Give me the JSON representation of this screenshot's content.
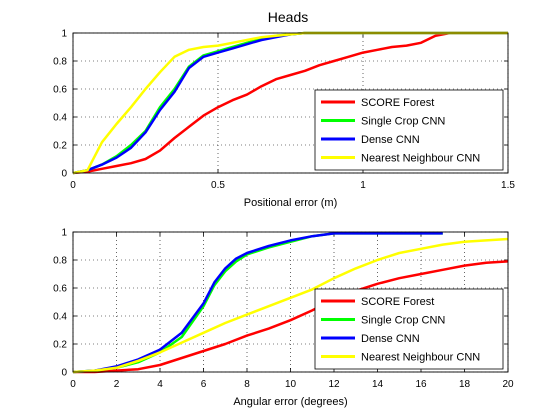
{
  "figure": {
    "title": "Heads",
    "legend_placement": "bottom-right"
  },
  "chart_data": [
    {
      "type": "line",
      "title": "Heads",
      "xlabel": "Positional error (m)",
      "ylabel": "",
      "xlim": [
        0,
        1.5
      ],
      "ylim": [
        0,
        1
      ],
      "xticks": [
        "0",
        "0.5",
        "1",
        "1.5"
      ],
      "yticks": [
        "0",
        "0.2",
        "0.4",
        "0.6",
        "0.8",
        "1"
      ],
      "grid": true,
      "legend": "bottom-right",
      "series": [
        {
          "name": "SCORE Forest",
          "color": "#ff0000",
          "x": [
            0,
            0.05,
            0.1,
            0.15,
            0.2,
            0.25,
            0.3,
            0.35,
            0.4,
            0.45,
            0.5,
            0.55,
            0.6,
            0.65,
            0.7,
            0.75,
            0.8,
            0.85,
            0.9,
            0.95,
            1.0,
            1.05,
            1.1,
            1.15,
            1.2,
            1.25,
            1.3,
            1.5
          ],
          "y": [
            0,
            0.01,
            0.03,
            0.05,
            0.07,
            0.1,
            0.16,
            0.25,
            0.33,
            0.41,
            0.47,
            0.52,
            0.56,
            0.62,
            0.67,
            0.7,
            0.73,
            0.77,
            0.8,
            0.83,
            0.86,
            0.88,
            0.9,
            0.91,
            0.93,
            0.98,
            1.0,
            1.0
          ]
        },
        {
          "name": "Single Crop CNN",
          "color": "#00ff00",
          "x": [
            0,
            0.05,
            0.1,
            0.15,
            0.2,
            0.25,
            0.3,
            0.35,
            0.4,
            0.45,
            0.5,
            0.55,
            0.6,
            0.65,
            0.7,
            0.75,
            0.8,
            1.5
          ],
          "y": [
            0,
            0.02,
            0.06,
            0.12,
            0.2,
            0.3,
            0.47,
            0.6,
            0.76,
            0.84,
            0.87,
            0.9,
            0.93,
            0.96,
            0.98,
            0.99,
            1.0,
            1.0
          ]
        },
        {
          "name": "Dense CNN",
          "color": "#0000ff",
          "x": [
            0,
            0.05,
            0.1,
            0.15,
            0.2,
            0.25,
            0.3,
            0.35,
            0.4,
            0.45,
            0.5,
            0.55,
            0.6,
            0.65,
            0.7,
            0.75,
            0.8,
            1.5
          ],
          "y": [
            0,
            0.02,
            0.06,
            0.11,
            0.18,
            0.29,
            0.45,
            0.58,
            0.75,
            0.83,
            0.86,
            0.89,
            0.92,
            0.95,
            0.97,
            0.99,
            1.0,
            1.0
          ]
        },
        {
          "name": "Nearest Neighbour CNN",
          "color": "#ffff00",
          "x": [
            0,
            0.05,
            0.1,
            0.15,
            0.2,
            0.25,
            0.3,
            0.35,
            0.4,
            0.45,
            0.5,
            0.55,
            0.6,
            0.65,
            0.7,
            0.75,
            0.8,
            1.5
          ],
          "y": [
            0,
            0.02,
            0.22,
            0.35,
            0.47,
            0.6,
            0.72,
            0.83,
            0.88,
            0.9,
            0.91,
            0.93,
            0.95,
            0.97,
            0.98,
            0.99,
            1.0,
            1.0
          ]
        }
      ]
    },
    {
      "type": "line",
      "title": "",
      "xlabel": "Angular error (degrees)",
      "ylabel": "",
      "xlim": [
        0,
        20
      ],
      "ylim": [
        0,
        1
      ],
      "xticks": [
        "0",
        "2",
        "4",
        "6",
        "8",
        "10",
        "12",
        "14",
        "16",
        "18",
        "20"
      ],
      "yticks": [
        "0",
        "0.2",
        "0.4",
        "0.6",
        "0.8",
        "1"
      ],
      "grid": true,
      "legend": "bottom-right",
      "series": [
        {
          "name": "SCORE Forest",
          "color": "#ff0000",
          "x": [
            0,
            1,
            2,
            3,
            4,
            5,
            6,
            7,
            8,
            9,
            10,
            11,
            12,
            13,
            14,
            15,
            16,
            17,
            18,
            19,
            20
          ],
          "y": [
            0,
            0.0,
            0.01,
            0.02,
            0.05,
            0.1,
            0.15,
            0.2,
            0.26,
            0.31,
            0.37,
            0.44,
            0.52,
            0.58,
            0.63,
            0.67,
            0.7,
            0.73,
            0.76,
            0.78,
            0.79
          ]
        },
        {
          "name": "Single Crop CNN",
          "color": "#00ff00",
          "x": [
            0,
            1,
            2,
            3,
            4,
            5,
            6,
            6.5,
            7,
            7.5,
            8,
            9,
            10,
            11,
            12,
            17
          ],
          "y": [
            0,
            0.01,
            0.03,
            0.07,
            0.14,
            0.25,
            0.47,
            0.62,
            0.72,
            0.79,
            0.84,
            0.89,
            0.93,
            0.97,
            0.99,
            0.99
          ]
        },
        {
          "name": "Dense CNN",
          "color": "#0000ff",
          "x": [
            0,
            1,
            2,
            3,
            4,
            5,
            6,
            6.5,
            7,
            7.5,
            8,
            9,
            10,
            11,
            12,
            17
          ],
          "y": [
            0,
            0.01,
            0.04,
            0.09,
            0.16,
            0.28,
            0.49,
            0.64,
            0.74,
            0.81,
            0.85,
            0.9,
            0.94,
            0.97,
            0.99,
            0.99
          ]
        },
        {
          "name": "Nearest Neighbour CNN",
          "color": "#ffff00",
          "x": [
            0,
            1,
            2,
            3,
            4,
            5,
            6,
            7,
            8,
            9,
            10,
            11,
            12,
            13,
            14,
            15,
            16,
            17,
            18,
            19,
            20
          ],
          "y": [
            0,
            0.01,
            0.03,
            0.08,
            0.14,
            0.21,
            0.28,
            0.35,
            0.41,
            0.47,
            0.53,
            0.59,
            0.67,
            0.74,
            0.8,
            0.85,
            0.88,
            0.91,
            0.93,
            0.94,
            0.95
          ]
        }
      ]
    }
  ]
}
